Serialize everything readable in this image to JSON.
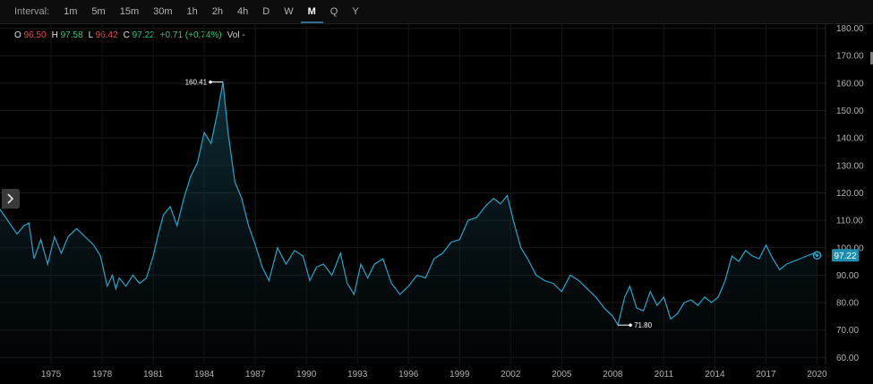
{
  "toolbar": {
    "label": "Interval:",
    "intervals": [
      "1m",
      "5m",
      "15m",
      "30m",
      "1h",
      "2h",
      "4h",
      "D",
      "W",
      "M",
      "Q",
      "Y"
    ],
    "active": "M"
  },
  "ohlc": {
    "o_key": "O",
    "o_val": "96.50",
    "h_key": "H",
    "h_val": "97.58",
    "l_key": "L",
    "l_val": "96.42",
    "c_key": "C",
    "c_val": "97.22",
    "change": "+0.71 (+0.74%)",
    "vol": "Vol -"
  },
  "icons": {
    "side_toggle": "chevron-right-icon"
  },
  "colors": {
    "line": "#2aa3c7",
    "current_badge": "#1d8fb0",
    "up": "#31c57a",
    "down": "#e0484c"
  },
  "chart_data": {
    "type": "area",
    "x_tick_labels": [
      "1975",
      "1978",
      "1981",
      "1984",
      "1987",
      "1990",
      "1993",
      "1996",
      "1999",
      "2002",
      "2005",
      "2008",
      "2011",
      "2014",
      "2017",
      "2020"
    ],
    "y_tick_labels": [
      "60.00",
      "70.00",
      "80.00",
      "90.00",
      "100.00",
      "110.00",
      "120.00",
      "130.00",
      "140.00",
      "150.00",
      "160.00",
      "170.00",
      "180.00"
    ],
    "xlim": [
      1972.0,
      2020.5
    ],
    "ylim": [
      57.5,
      181.5
    ],
    "grid": true,
    "annotations": [
      {
        "x": 1985.1,
        "y": 160.41,
        "label": "160.41",
        "side": "left"
      },
      {
        "x": 2008.3,
        "y": 71.8,
        "label": "71.80",
        "side": "right"
      }
    ],
    "last_value": {
      "x": 2020.0,
      "y": 97.22,
      "label": "97.22"
    },
    "series": [
      {
        "x": [
          1972.0,
          1973.0,
          1973.4,
          1973.7,
          1974.0,
          1974.4,
          1974.8,
          1975.2,
          1975.6,
          1976.0,
          1976.5,
          1977.0,
          1977.5,
          1977.9,
          1978.3,
          1978.6,
          1978.8,
          1979.0,
          1979.4,
          1979.8,
          1980.2,
          1980.6,
          1981.0,
          1981.3,
          1981.6,
          1982.0,
          1982.4,
          1982.8,
          1983.2,
          1983.6,
          1984.0,
          1984.4,
          1984.8,
          1985.1,
          1985.4,
          1985.8,
          1986.2,
          1986.6,
          1987.0,
          1987.4,
          1987.8,
          1988.3,
          1988.8,
          1989.3,
          1989.8,
          1990.2,
          1990.6,
          1991.0,
          1991.5,
          1992.0,
          1992.4,
          1992.8,
          1993.2,
          1993.6,
          1994.0,
          1994.5,
          1995.0,
          1995.5,
          1996.0,
          1996.5,
          1997.0,
          1997.5,
          1998.0,
          1998.5,
          1999.0,
          1999.5,
          2000.0,
          2000.5,
          2001.0,
          2001.4,
          2001.8,
          2002.2,
          2002.6,
          2003.0,
          2003.5,
          2004.0,
          2004.5,
          2005.0,
          2005.5,
          2006.0,
          2006.5,
          2007.0,
          2007.5,
          2008.0,
          2008.3,
          2008.7,
          2009.0,
          2009.4,
          2009.8,
          2010.2,
          2010.6,
          2011.0,
          2011.4,
          2011.8,
          2012.2,
          2012.6,
          2013.0,
          2013.4,
          2013.8,
          2014.2,
          2014.6,
          2015.0,
          2015.4,
          2015.8,
          2016.2,
          2016.6,
          2017.0,
          2017.4,
          2017.8,
          2018.2,
          2018.6,
          2019.0,
          2019.4,
          2019.8,
          2020.0
        ],
        "y": [
          114,
          105,
          108,
          109,
          96,
          103,
          94,
          104,
          98,
          104,
          107,
          104,
          101,
          97,
          86,
          90,
          85,
          89,
          86,
          90,
          87,
          89,
          97,
          105,
          112,
          115,
          108,
          118,
          126,
          131,
          142,
          138,
          150,
          160.41,
          142,
          124,
          118,
          108,
          101,
          93,
          88,
          100,
          94,
          99,
          97,
          88,
          93,
          94,
          90,
          98,
          87,
          83,
          94,
          89,
          94,
          96,
          87,
          83,
          86,
          90,
          89,
          96,
          98,
          102,
          103,
          110,
          111,
          115,
          118,
          116,
          119,
          109,
          100,
          96,
          90,
          88,
          87,
          84,
          90,
          88,
          85,
          82,
          78,
          75,
          71.8,
          82,
          86,
          78,
          77,
          84,
          79,
          82,
          74,
          76,
          80,
          81,
          79,
          82,
          80,
          82,
          88,
          97,
          95,
          99,
          97,
          96,
          101,
          96,
          92,
          94,
          95,
          96,
          97,
          98,
          97.22
        ]
      }
    ]
  }
}
